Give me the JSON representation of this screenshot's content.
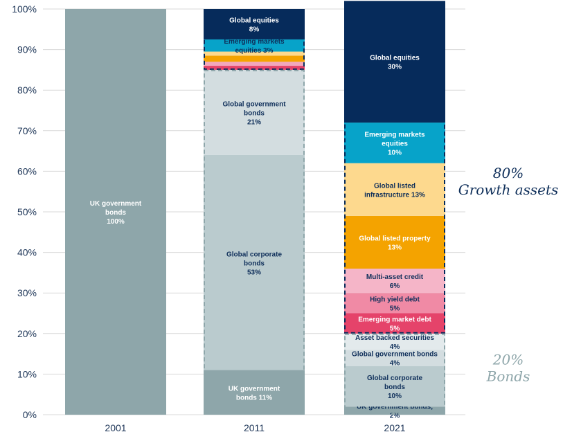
{
  "chart_data": {
    "type": "bar",
    "stacked": true,
    "categories": [
      "2001",
      "2011",
      "2021"
    ],
    "ylim": [
      0,
      100
    ],
    "yticks": [
      "0%",
      "10%",
      "20%",
      "30%",
      "40%",
      "50%",
      "60%",
      "70%",
      "80%",
      "90%",
      "100%"
    ],
    "grid": true,
    "stacks": [
      {
        "category": "2001",
        "segments": [
          {
            "name": "UK government bonds",
            "value": 100,
            "label": [
              "UK government",
              "bonds",
              "100%"
            ],
            "color": "#8ea6aa",
            "text_color": "#ffffff"
          }
        ]
      },
      {
        "category": "2011",
        "segments": [
          {
            "name": "UK government bonds",
            "value": 11,
            "label": [
              "UK government",
              "bonds 11%"
            ],
            "color": "#8ea6aa",
            "text_color": "#ffffff"
          },
          {
            "name": "Global corporate bonds",
            "value": 53,
            "label": [
              "Global corporate",
              "bonds",
              "53%"
            ],
            "color": "#bacbce",
            "text_color": "#0f2f5a"
          },
          {
            "name": "Global government bonds",
            "value": 21,
            "label": [
              "Global government",
              "bonds",
              "21%"
            ],
            "color": "#d3dde0",
            "text_color": "#0f2f5a"
          },
          {
            "name": "Pink segment",
            "value": 1,
            "label": [],
            "color": "#e5436a",
            "text_color": "#ffffff"
          },
          {
            "name": "Light pink segment",
            "value": 1,
            "label": [],
            "color": "#f2a7bd",
            "text_color": "#0f2f5a"
          },
          {
            "name": "Orange segment",
            "value": 1.5,
            "label": [],
            "color": "#f4a300",
            "text_color": "#ffffff"
          },
          {
            "name": "Light orange segment",
            "value": 1,
            "label": [],
            "color": "#fdd98e",
            "text_color": "#0f2f5a"
          },
          {
            "name": "Emerging markets equities",
            "value": 3,
            "label": [
              "Emerging markets",
              "equities 3%"
            ],
            "color": "#07a3c9",
            "text_color": "#0f2f5a"
          },
          {
            "name": "Global equities",
            "value": 7.5,
            "label": [
              "Global equities",
              "8%"
            ],
            "color": "#062b5b",
            "text_color": "#ffffff"
          }
        ]
      },
      {
        "category": "2021",
        "segments": [
          {
            "name": "UK government bonds",
            "value": 2,
            "label": [
              "UK government bonds,",
              "2%"
            ],
            "color": "#8ea6aa",
            "text_color": "#0f2f5a"
          },
          {
            "name": "Global corporate bonds",
            "value": 10,
            "label": [
              "Global corporate",
              "bonds",
              "10%"
            ],
            "color": "#bacbce",
            "text_color": "#0f2f5a"
          },
          {
            "name": "Global government bonds",
            "value": 4,
            "label": [
              "Global government bonds",
              "4%"
            ],
            "color": "#d3dde0",
            "text_color": "#0f2f5a"
          },
          {
            "name": "Asset backed securities",
            "value": 4,
            "label": [
              "Asset backed securities",
              "4%"
            ],
            "color": "#e3eaec",
            "text_color": "#0f2f5a"
          },
          {
            "name": "Emerging market debt",
            "value": 5,
            "label": [
              "Emerging market debt",
              "5%"
            ],
            "color": "#e5436a",
            "text_color": "#ffffff"
          },
          {
            "name": "High yield debt",
            "value": 5,
            "label": [
              "High yield debt",
              "5%"
            ],
            "color": "#f08aa5",
            "text_color": "#0f2f5a"
          },
          {
            "name": "Multi-asset credit",
            "value": 6,
            "label": [
              "Multi-asset credit",
              "6%"
            ],
            "color": "#f5b5c8",
            "text_color": "#0f2f5a"
          },
          {
            "name": "Global listed property",
            "value": 13,
            "label": [
              "Global listed property",
              "13%"
            ],
            "color": "#f4a300",
            "text_color": "#ffffff"
          },
          {
            "name": "Global listed infrastructure",
            "value": 13,
            "label": [
              "Global listed",
              "infrastructure 13%"
            ],
            "color": "#fdd98e",
            "text_color": "#0f2f5a"
          },
          {
            "name": "Emerging markets equities",
            "value": 10,
            "label": [
              "Emerging markets",
              "equities",
              "10%"
            ],
            "color": "#07a3c9",
            "text_color": "#ffffff"
          },
          {
            "name": "Global equities",
            "value": 30,
            "label": [
              "Global equities",
              "30%"
            ],
            "color": "#062b5b",
            "text_color": "#ffffff"
          }
        ]
      }
    ],
    "outlines": [
      {
        "category": "2011",
        "from": 85,
        "to": 100,
        "color": "#062b5b"
      },
      {
        "category": "2011",
        "from": 0,
        "to": 85,
        "color": "#8ea6aa"
      },
      {
        "category": "2021",
        "from": 20,
        "to": 100,
        "color": "#062b5b"
      },
      {
        "category": "2021",
        "from": 0,
        "to": 20,
        "color": "#8ea6aa"
      }
    ],
    "annotations": [
      {
        "text": [
          "80%",
          "Growth assets"
        ],
        "color": "#0f2f5a",
        "value": 57
      },
      {
        "text": [
          "20%",
          "Bonds"
        ],
        "color": "#8ea6aa",
        "value": 11
      }
    ]
  }
}
